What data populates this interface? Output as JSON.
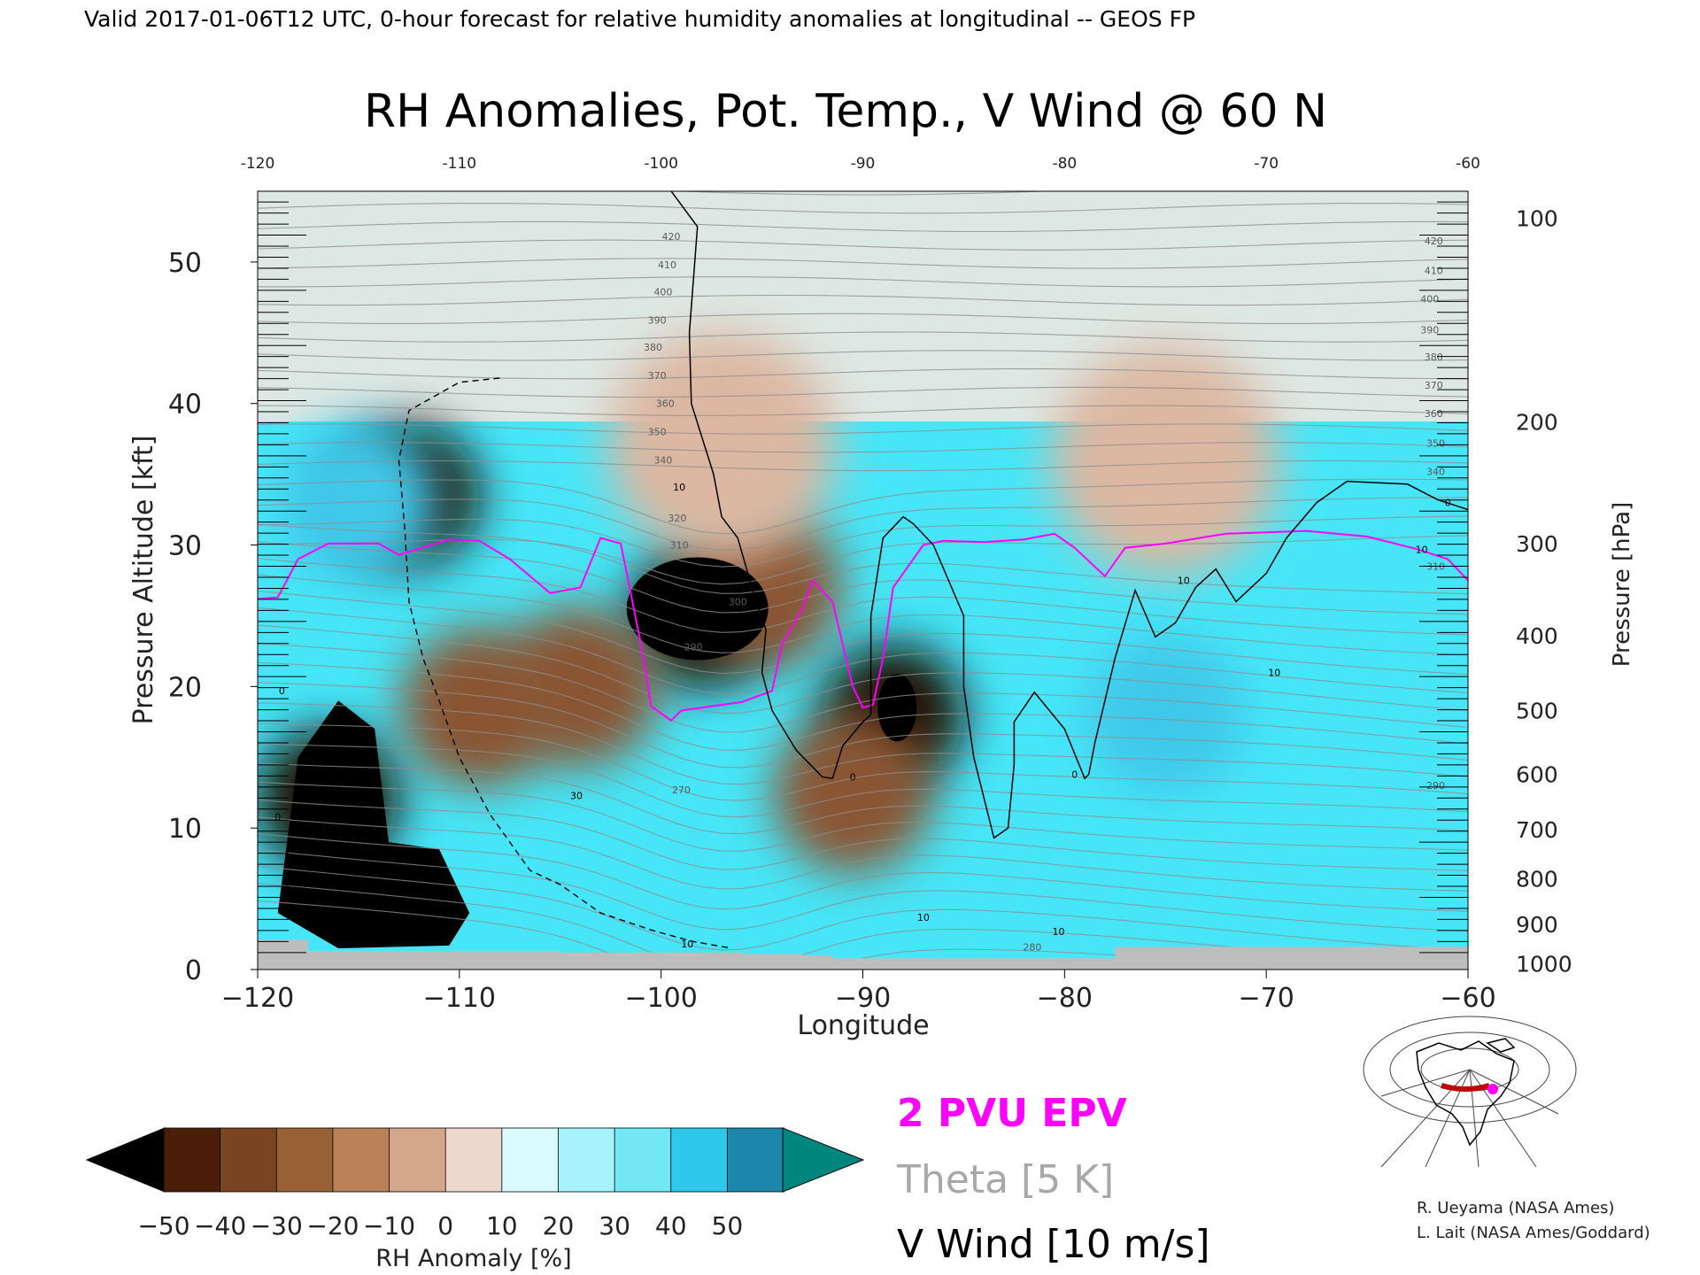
{
  "header": {
    "valid_line": "Valid 2017-01-06T12 UTC, 0-hour forecast for relative humidity anomalies at longitudinal -- GEOS FP"
  },
  "credits": {
    "line1": "R. Ueyama (NASA Ames)",
    "line2": "L. Lait (NASA Ames/Goddard)"
  },
  "legend": {
    "epv": "2 PVU EPV",
    "theta": "Theta [5 K]",
    "vwind": "V Wind [10 m/s]",
    "colors": {
      "epv": "#ff00ff",
      "theta": "#a8a8a8",
      "vwind": "#000000"
    }
  },
  "chart_data": {
    "type": "heatmap",
    "title": "RH Anomalies, Pot. Temp., V Wind @ 60 N",
    "xlabel": "Longitude",
    "ylabel": "Pressure Altitude [kft]",
    "y2label": "Pressure [hPa]",
    "xlim": [
      -120,
      -60
    ],
    "ylim": [
      0,
      55
    ],
    "x_ticks": [
      -120,
      -110,
      -100,
      -90,
      -80,
      -70,
      -60
    ],
    "x_tick_labels": [
      "−120",
      "−110",
      "−100",
      "−90",
      "−80",
      "−70",
      "−60"
    ],
    "top_tick_labels": [
      "-120",
      "-110",
      "-100",
      "-90",
      "-80",
      "-70",
      "-60"
    ],
    "y_ticks": [
      0,
      10,
      20,
      30,
      40,
      50
    ],
    "y_tick_labels": [
      "0",
      "10",
      "20",
      "30",
      "40",
      "50"
    ],
    "pressure_ticks": [
      {
        "hpa": "100",
        "kft": 53.1
      },
      {
        "hpa": "200",
        "kft": 38.7
      },
      {
        "hpa": "300",
        "kft": 30.1
      },
      {
        "hpa": "400",
        "kft": 23.6
      },
      {
        "hpa": "500",
        "kft": 18.3
      },
      {
        "hpa": "600",
        "kft": 13.8
      },
      {
        "hpa": "700",
        "kft": 9.9
      },
      {
        "hpa": "800",
        "kft": 6.4
      },
      {
        "hpa": "900",
        "kft": 3.2
      },
      {
        "hpa": "1000",
        "kft": 0.4
      }
    ],
    "theta_labels": [
      {
        "text": "420",
        "x": -99.5,
        "y": 51.8
      },
      {
        "text": "410",
        "x": -99.7,
        "y": 49.8
      },
      {
        "text": "400",
        "x": -99.9,
        "y": 47.9
      },
      {
        "text": "390",
        "x": -100.2,
        "y": 45.9
      },
      {
        "text": "380",
        "x": -100.4,
        "y": 44.0
      },
      {
        "text": "370",
        "x": -100.2,
        "y": 42.0
      },
      {
        "text": "360",
        "x": -99.8,
        "y": 40.0
      },
      {
        "text": "350",
        "x": -100.2,
        "y": 38.0
      },
      {
        "text": "340",
        "x": -99.9,
        "y": 36.0
      },
      {
        "text": "320",
        "x": -99.2,
        "y": 31.9
      },
      {
        "text": "310",
        "x": -99.1,
        "y": 30.0
      },
      {
        "text": "300",
        "x": -96.2,
        "y": 26.0
      },
      {
        "text": "290",
        "x": -98.4,
        "y": 22.8
      },
      {
        "text": "270",
        "x": -99.0,
        "y": 12.7
      },
      {
        "text": "420",
        "x": -61.7,
        "y": 51.5
      },
      {
        "text": "410",
        "x": -61.7,
        "y": 49.4
      },
      {
        "text": "400",
        "x": -61.9,
        "y": 47.4
      },
      {
        "text": "390",
        "x": -61.9,
        "y": 45.2
      },
      {
        "text": "380",
        "x": -61.7,
        "y": 43.3
      },
      {
        "text": "370",
        "x": -61.7,
        "y": 41.3
      },
      {
        "text": "360",
        "x": -61.7,
        "y": 39.3
      },
      {
        "text": "350",
        "x": -61.6,
        "y": 37.2
      },
      {
        "text": "340",
        "x": -61.6,
        "y": 35.2
      },
      {
        "text": "310",
        "x": -61.6,
        "y": 28.5
      },
      {
        "text": "290",
        "x": -61.6,
        "y": 13.0
      },
      {
        "text": "280",
        "x": -81.6,
        "y": 1.6
      }
    ],
    "wind_labels": [
      {
        "text": "10",
        "x": -99.1,
        "y": 34.1
      },
      {
        "text": "30",
        "x": -104.2,
        "y": 12.3
      },
      {
        "text": "0",
        "x": -90.5,
        "y": 13.6
      },
      {
        "text": "0",
        "x": -79.5,
        "y": 13.8
      },
      {
        "text": "10",
        "x": -74.1,
        "y": 27.5
      },
      {
        "text": "10",
        "x": -69.6,
        "y": 21.0
      },
      {
        "text": "10",
        "x": -62.3,
        "y": 29.7
      },
      {
        "text": "0",
        "x": -61.0,
        "y": 33.0
      },
      {
        "text": "10",
        "x": -98.7,
        "y": 1.8
      },
      {
        "text": "10",
        "x": -87.0,
        "y": 3.7
      },
      {
        "text": "10",
        "x": -80.3,
        "y": 2.7
      },
      {
        "text": "0",
        "x": -119.0,
        "y": 10.8
      },
      {
        "text": "0",
        "x": -118.8,
        "y": 19.7
      }
    ],
    "colorbar": {
      "label": "RH Anomaly [%]",
      "levels": [
        -50,
        -40,
        -30,
        -20,
        -10,
        0,
        10,
        20,
        30,
        40,
        50
      ],
      "tick_labels": [
        "−50",
        "−40",
        "−30",
        "−20",
        "−10",
        "0",
        "10",
        "20",
        "30",
        "40",
        "50"
      ],
      "colors": [
        "#4a1e08",
        "#7b4420",
        "#9a6136",
        "#b98158",
        "#d4a78a",
        "#ecd8cc",
        "#d9fbff",
        "#a8f3fb",
        "#72e8f7",
        "#2ec8ea",
        "#1d86ab"
      ],
      "under_color": "#000000",
      "over_color": "#00867d"
    },
    "blobs": [
      {
        "kind": "dark",
        "x": -112.5,
        "y": 33.5
      },
      {
        "kind": "dark",
        "x": -98.0,
        "y": 25.0
      },
      {
        "kind": "dark",
        "x": -116.5,
        "y": 12.0
      },
      {
        "kind": "dark",
        "x": -88.5,
        "y": 18.0
      },
      {
        "kind": "brown",
        "x": -95.0,
        "y": 27.0
      },
      {
        "kind": "brown",
        "x": -109.0,
        "y": 18.5
      },
      {
        "kind": "brown",
        "x": -90.5,
        "y": 12.5
      },
      {
        "kind": "brown",
        "x": -104.0,
        "y": 20.0
      },
      {
        "kind": "tan",
        "x": -97.0,
        "y": 37.0
      },
      {
        "kind": "tan",
        "x": -75.0,
        "y": 36.0
      },
      {
        "kind": "cyan",
        "x": -115.0,
        "y": 33.0
      },
      {
        "kind": "cyan",
        "x": -75.0,
        "y": 18.0
      }
    ],
    "pv_contour": [
      [
        -120,
        26.2
      ],
      [
        -119,
        26.3
      ],
      [
        -118,
        29
      ],
      [
        -116.5,
        30.1
      ],
      [
        -114,
        30.1
      ],
      [
        -113,
        29.3
      ],
      [
        -110.5,
        30.4
      ],
      [
        -109,
        30.3
      ],
      [
        -107.5,
        29
      ],
      [
        -105.5,
        26.6
      ],
      [
        -104,
        27
      ],
      [
        -103,
        30.5
      ],
      [
        -102,
        30.1
      ],
      [
        -101,
        23
      ],
      [
        -100.5,
        18.6
      ],
      [
        -99.5,
        17.6
      ],
      [
        -99,
        18.3
      ],
      [
        -96,
        18.9
      ],
      [
        -94.5,
        19.7
      ],
      [
        -94,
        23
      ],
      [
        -93,
        25.5
      ],
      [
        -92.5,
        27.5
      ],
      [
        -91.5,
        26
      ],
      [
        -90.5,
        20
      ],
      [
        -90,
        18.5
      ],
      [
        -89.5,
        18.7
      ],
      [
        -89,
        22
      ],
      [
        -88.5,
        27
      ],
      [
        -87,
        30
      ],
      [
        -86,
        30.3
      ],
      [
        -84,
        30.2
      ],
      [
        -82,
        30.4
      ],
      [
        -80.5,
        30.8
      ],
      [
        -79.5,
        29.8
      ],
      [
        -78,
        27.8
      ],
      [
        -77,
        29.8
      ],
      [
        -75,
        30.1
      ],
      [
        -72,
        30.8
      ],
      [
        -68,
        31
      ],
      [
        -65,
        30.6
      ],
      [
        -62.5,
        29.7
      ],
      [
        -61,
        29
      ],
      [
        -60,
        27.5
      ]
    ],
    "vwind_solid": [
      [
        -99.5,
        55
      ],
      [
        -98.2,
        52.5
      ],
      [
        -98.6,
        45
      ],
      [
        -98.5,
        40
      ],
      [
        -97.4,
        35
      ],
      [
        -97,
        32
      ],
      [
        -96.2,
        30.5
      ],
      [
        -95.4,
        26.5
      ],
      [
        -94.8,
        24
      ],
      [
        -95,
        21
      ],
      [
        -94.5,
        18.3
      ],
      [
        -93.3,
        15.5
      ],
      [
        -92,
        13.6
      ],
      [
        -91.5,
        13.5
      ],
      [
        -91,
        15.8
      ],
      [
        -90,
        17.5
      ],
      [
        -89.6,
        18
      ],
      [
        -89.6,
        25
      ],
      [
        -89,
        30.5
      ],
      [
        -88,
        32
      ],
      [
        -87.5,
        31.5
      ],
      [
        -86.5,
        30
      ],
      [
        -85,
        25
      ],
      [
        -85,
        20
      ],
      [
        -84.5,
        15
      ],
      [
        -83.5,
        9.3
      ],
      [
        -82.8,
        10
      ],
      [
        -82.5,
        14.5
      ],
      [
        -82.5,
        17.5
      ],
      [
        -81.5,
        19.6
      ],
      [
        -80,
        17
      ],
      [
        -79,
        13.5
      ],
      [
        -78.8,
        13.8
      ],
      [
        -78.5,
        16
      ],
      [
        -77.5,
        22
      ],
      [
        -76.5,
        26.8
      ],
      [
        -75.5,
        23.5
      ],
      [
        -74.5,
        24.5
      ],
      [
        -73.5,
        27
      ],
      [
        -72.5,
        28.3
      ],
      [
        -71.5,
        26
      ],
      [
        -70,
        28
      ],
      [
        -69,
        30.5
      ],
      [
        -67.5,
        33
      ],
      [
        -66,
        34.5
      ],
      [
        -63,
        34.3
      ],
      [
        -61.5,
        33.2
      ],
      [
        -60,
        32.5
      ]
    ],
    "vwind_dashed": [
      [
        -108,
        41.8
      ],
      [
        -110,
        41.5
      ],
      [
        -112.5,
        39.5
      ],
      [
        -113,
        36
      ],
      [
        -112.7,
        31
      ],
      [
        -112.5,
        26
      ],
      [
        -111.8,
        22
      ],
      [
        -111,
        19
      ],
      [
        -110,
        15
      ],
      [
        -108.5,
        11
      ],
      [
        -107,
        8
      ],
      [
        -106.5,
        7
      ],
      [
        -105,
        6
      ],
      [
        -103,
        4
      ],
      [
        -100.5,
        2.8
      ],
      [
        -98.5,
        2.0
      ],
      [
        -96.5,
        1.5
      ]
    ],
    "surface_kft": [
      [
        -120,
        2.1
      ],
      [
        -118,
        2.1
      ],
      [
        -117.5,
        1.3
      ],
      [
        -110,
        1.3
      ],
      [
        -105,
        1.2
      ],
      [
        -100,
        1.2
      ],
      [
        -96,
        1.1
      ],
      [
        -93,
        1.0
      ],
      [
        -91.5,
        0.8
      ],
      [
        -80,
        0.8
      ],
      [
        -77.5,
        1.6
      ],
      [
        -70,
        1.6
      ],
      [
        -61.5,
        1.6
      ],
      [
        -60,
        2.3
      ]
    ]
  }
}
